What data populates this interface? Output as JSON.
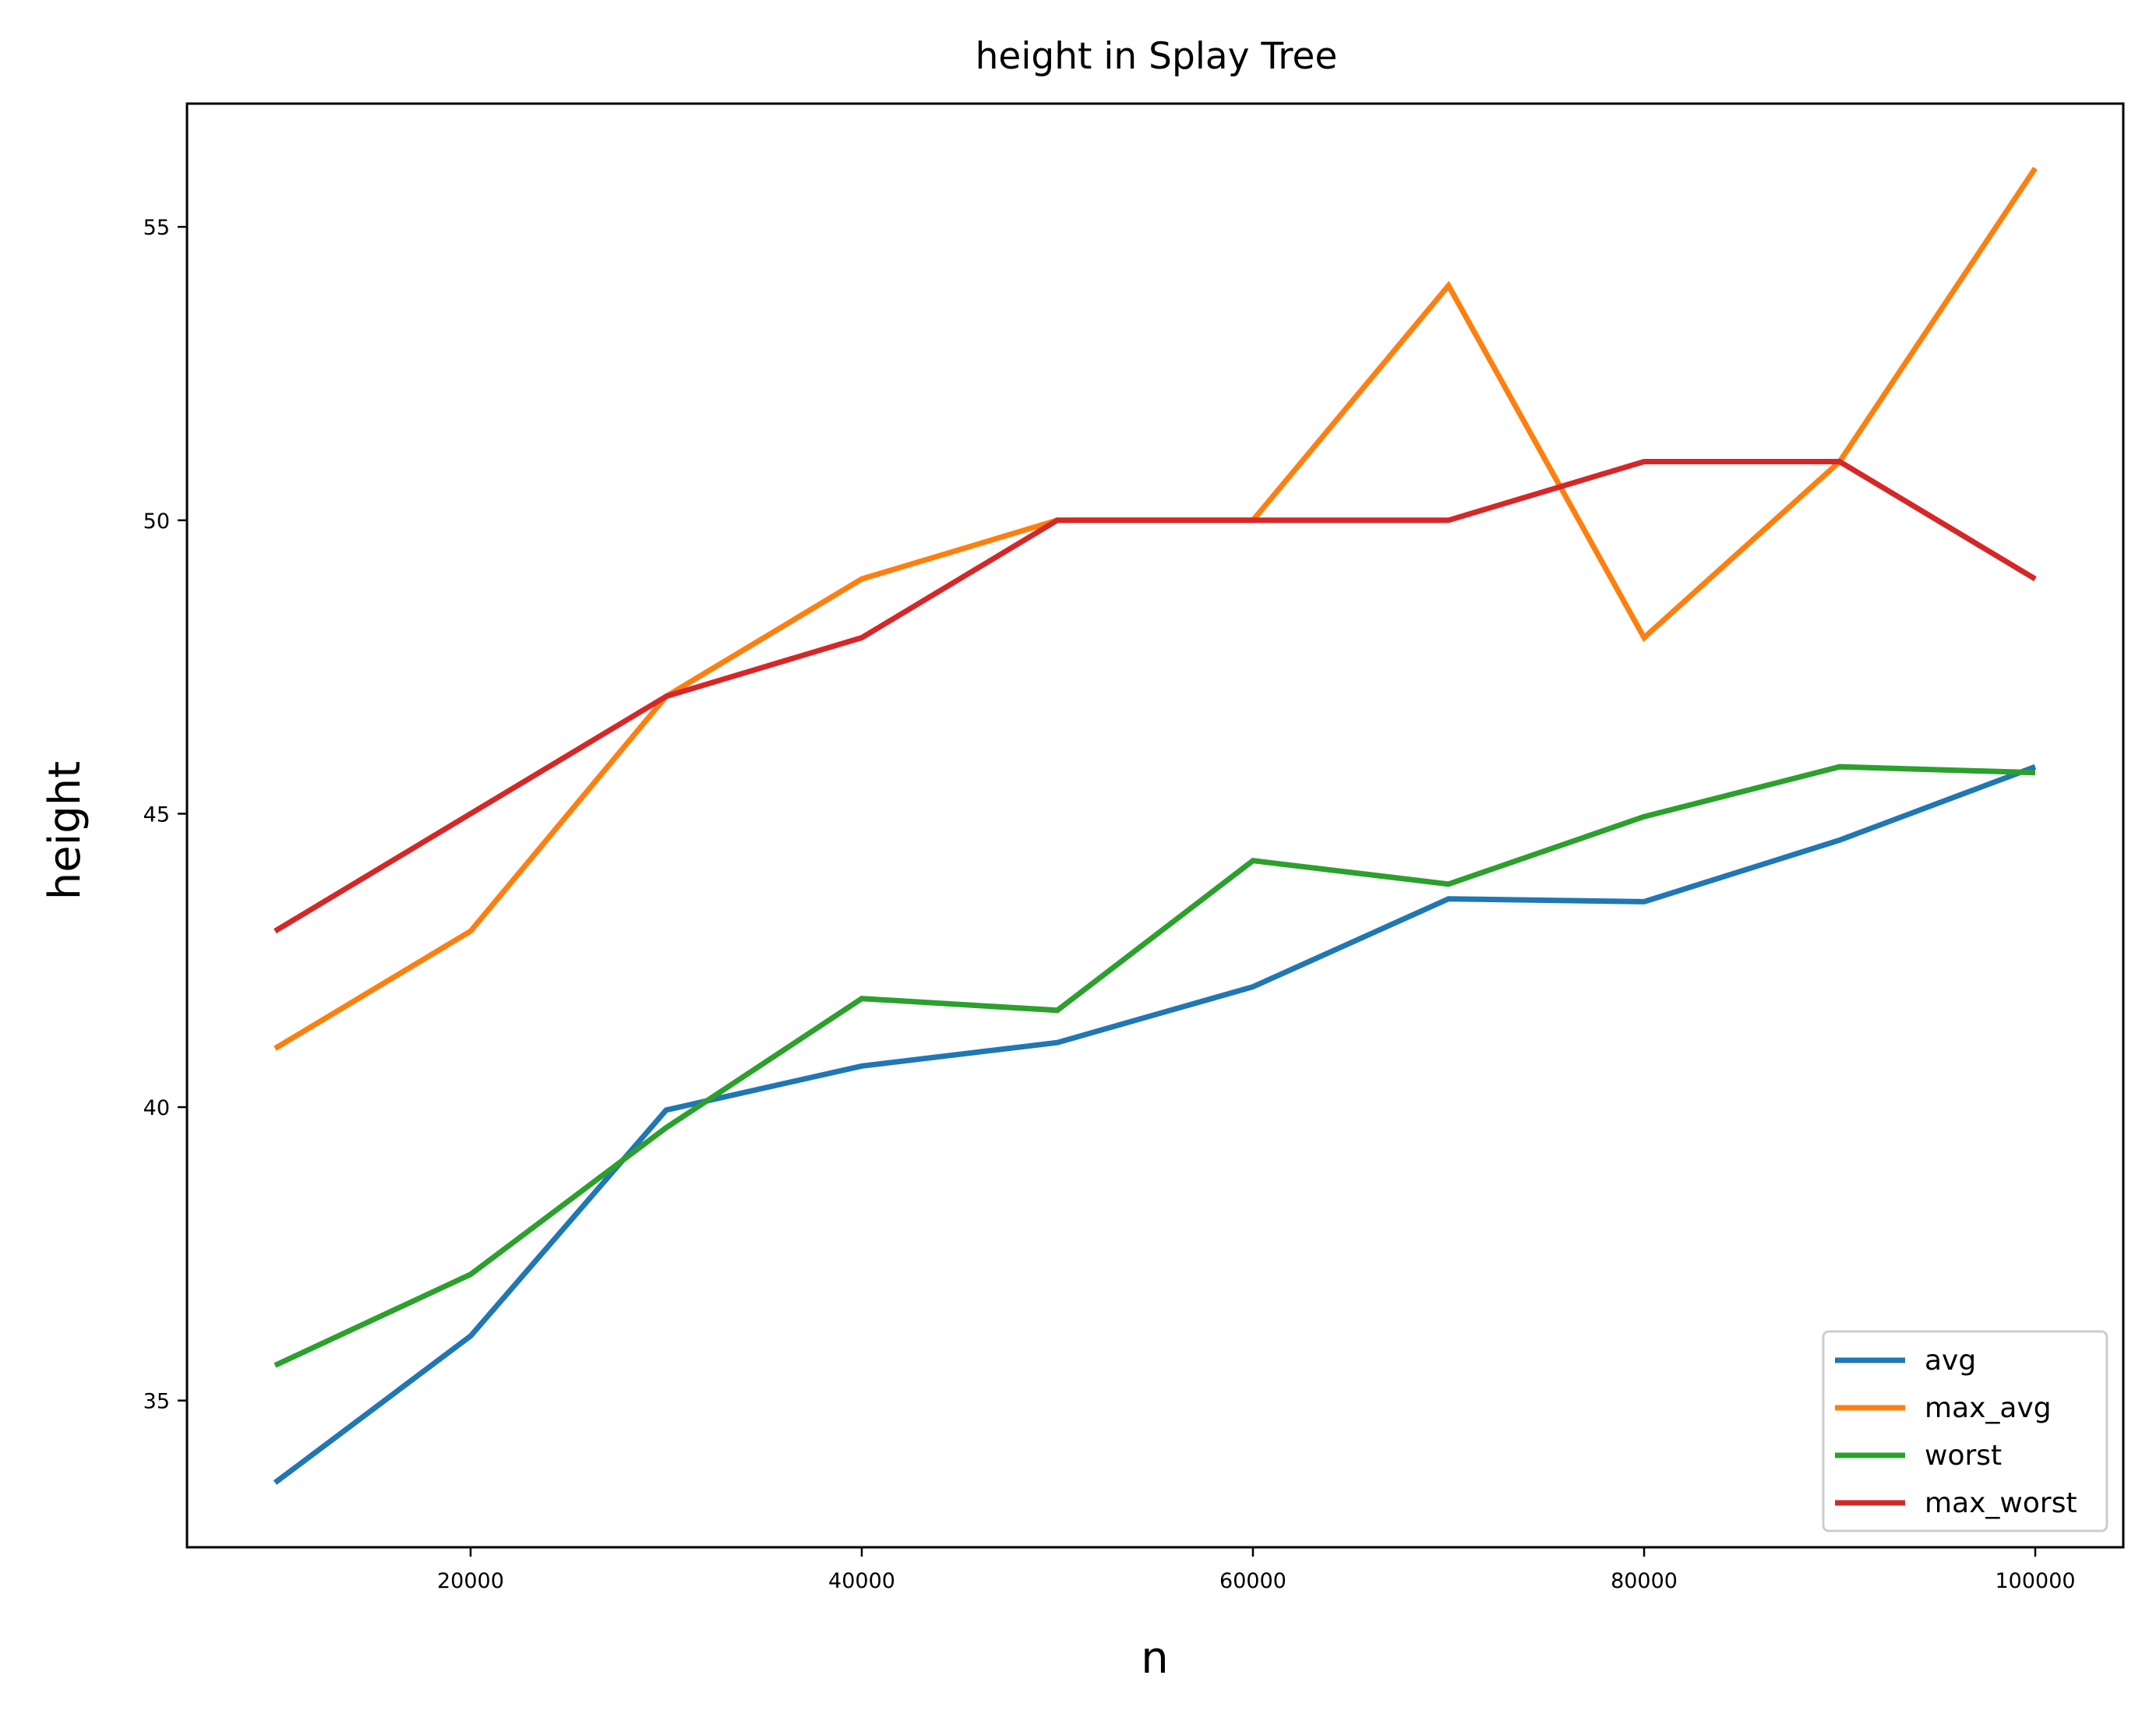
{
  "chart_data": {
    "type": "line",
    "title": "height in Splay Tree",
    "xlabel": "n",
    "ylabel": "height",
    "x": [
      10000,
      20000,
      30000,
      40000,
      50000,
      60000,
      70000,
      80000,
      90000,
      100000
    ],
    "xlim": [
      5500,
      104500
    ],
    "ylim": [
      32.5,
      57.1
    ],
    "xticks": [
      20000,
      40000,
      60000,
      80000,
      100000
    ],
    "yticks": [
      35,
      40,
      45,
      50,
      55
    ],
    "grid": false,
    "legend_position": "lower-right",
    "series": [
      {
        "name": "avg",
        "color": "#1f77b4",
        "values": [
          33.6,
          36.1,
          39.95,
          40.7,
          41.1,
          42.05,
          43.55,
          43.5,
          44.55,
          45.8
        ]
      },
      {
        "name": "max_avg",
        "color": "#ff7f0e",
        "values": [
          41,
          43,
          47,
          49,
          50,
          50,
          54,
          48,
          51,
          56
        ]
      },
      {
        "name": "worst",
        "color": "#2ca02c",
        "values": [
          35.6,
          37.15,
          39.65,
          41.85,
          41.65,
          44.2,
          43.8,
          44.95,
          45.8,
          45.7
        ]
      },
      {
        "name": "max_worst",
        "color": "#d62728",
        "values": [
          43,
          45,
          47,
          48,
          50,
          50,
          50,
          51,
          51,
          49
        ]
      }
    ]
  }
}
